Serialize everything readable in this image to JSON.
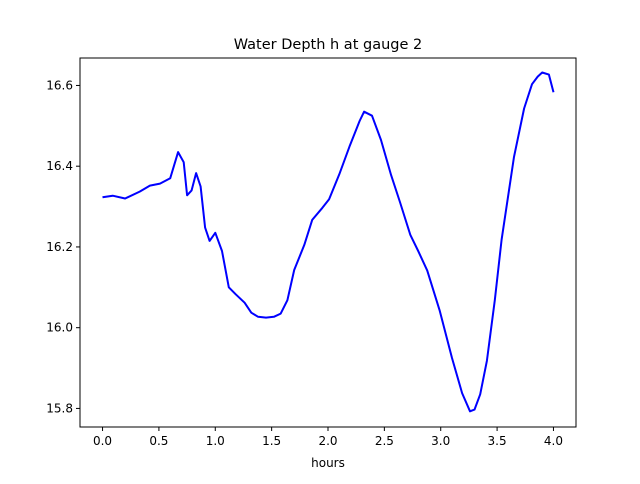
{
  "chart_data": {
    "type": "line",
    "title": "Water Depth h at gauge 2",
    "xlabel": "hours",
    "ylabel": "",
    "xlim": [
      -0.2,
      4.2
    ],
    "ylim": [
      15.754,
      16.668
    ],
    "xticks": [
      0.0,
      0.5,
      1.0,
      1.5,
      2.0,
      2.5,
      3.0,
      3.5,
      4.0
    ],
    "xtick_labels": [
      "0.0",
      "0.5",
      "1.0",
      "1.5",
      "2.0",
      "2.5",
      "3.0",
      "3.5",
      "4.0"
    ],
    "yticks": [
      15.8,
      16.0,
      16.2,
      16.4,
      16.6
    ],
    "ytick_labels": [
      "15.8",
      "16.0",
      "16.2",
      "16.4",
      "16.6"
    ],
    "grid": false,
    "series": [
      {
        "name": "h",
        "color": "#0000ff",
        "x": [
          0,
          0.09,
          0.2,
          0.33,
          0.42,
          0.51,
          0.6,
          0.67,
          0.72,
          0.75,
          0.79,
          0.83,
          0.87,
          0.91,
          0.95,
          1.0,
          1.06,
          1.12,
          1.18,
          1.26,
          1.32,
          1.38,
          1.45,
          1.52,
          1.58,
          1.64,
          1.7,
          1.79,
          1.86,
          1.95,
          2.01,
          2.1,
          2.19,
          2.28,
          2.32,
          2.39,
          2.47,
          2.56,
          2.64,
          2.73,
          2.8,
          2.88,
          2.99,
          3.1,
          3.19,
          3.26,
          3.3,
          3.35,
          3.41,
          3.48,
          3.54,
          3.65,
          3.74,
          3.81,
          3.86,
          3.9,
          3.96,
          4.0
        ],
        "y": [
          16.323,
          16.327,
          16.32,
          16.337,
          16.352,
          16.357,
          16.37,
          16.435,
          16.41,
          16.328,
          16.34,
          16.383,
          16.35,
          16.248,
          16.215,
          16.235,
          16.19,
          16.1,
          16.083,
          16.062,
          16.037,
          16.027,
          16.025,
          16.027,
          16.035,
          16.068,
          16.143,
          16.205,
          16.267,
          16.297,
          16.318,
          16.38,
          16.448,
          16.512,
          16.535,
          16.525,
          16.465,
          16.378,
          16.31,
          16.23,
          16.19,
          16.142,
          16.043,
          15.925,
          15.838,
          15.793,
          15.797,
          15.835,
          15.918,
          16.068,
          16.218,
          16.423,
          16.543,
          16.603,
          16.622,
          16.632,
          16.627,
          16.583
        ]
      }
    ]
  }
}
